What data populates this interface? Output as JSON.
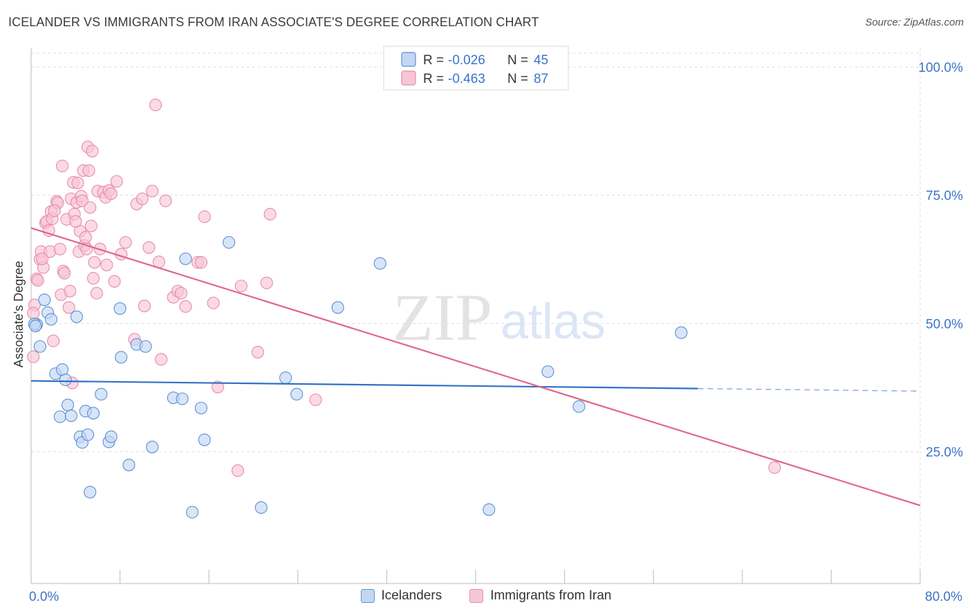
{
  "header": {
    "title": "ICELANDER VS IMMIGRANTS FROM IRAN ASSOCIATE'S DEGREE CORRELATION CHART",
    "source": "Source: ZipAtlas.com"
  },
  "watermark": {
    "zip": "ZIP",
    "atlas": "atlas"
  },
  "colors": {
    "blue_fill": "#c3d7f2",
    "blue_stroke": "#5b8fd6",
    "blue_line": "#2f6fc9",
    "pink_fill": "#f7c6d5",
    "pink_stroke": "#e98aa8",
    "pink_line": "#e0648f",
    "axis_label": "#3b73c8",
    "grid": "#dddddd"
  },
  "legend_top": {
    "rows": [
      {
        "r_label": "R =",
        "r_value": "-0.026",
        "n_label": "N =",
        "n_value": "45"
      },
      {
        "r_label": "R =",
        "r_value": "-0.463",
        "n_label": "N =",
        "n_value": "87"
      }
    ]
  },
  "chart_data": {
    "type": "scatter",
    "title": "ICELANDER VS IMMIGRANTS FROM IRAN ASSOCIATE'S DEGREE CORRELATION CHART",
    "xlabel": "",
    "ylabel": "Associate's Degree",
    "xlim": [
      0,
      80
    ],
    "ylim": [
      0,
      105
    ],
    "x_tick_labels": [
      "0.0%",
      "80.0%"
    ],
    "y_ticks": [
      25,
      50,
      75,
      100
    ],
    "y_tick_labels": [
      "25.0%",
      "50.0%",
      "75.0%",
      "100.0%"
    ],
    "grid": true,
    "legend_position": "top-center",
    "series": [
      {
        "name": "Icelanders",
        "r": -0.026,
        "n": 45,
        "trend": {
          "x0": 0,
          "y0": 38.8,
          "x1": 60,
          "y1": 37.3,
          "dashed_to": 80,
          "dashed_y": 36.8
        },
        "points": [
          [
            0.5,
            49.8
          ],
          [
            0.8,
            45.5
          ],
          [
            1.2,
            54.6
          ],
          [
            1.5,
            52.1
          ],
          [
            1.8,
            50.8
          ],
          [
            2.2,
            40.2
          ],
          [
            2.6,
            31.8
          ],
          [
            2.8,
            41.0
          ],
          [
            3.1,
            39.0
          ],
          [
            3.3,
            34.1
          ],
          [
            3.6,
            32.0
          ],
          [
            4.1,
            51.3
          ],
          [
            4.4,
            27.9
          ],
          [
            4.6,
            26.8
          ],
          [
            4.9,
            32.9
          ],
          [
            5.1,
            28.3
          ],
          [
            5.3,
            17.1
          ],
          [
            5.6,
            32.5
          ],
          [
            6.3,
            36.2
          ],
          [
            7.0,
            26.9
          ],
          [
            7.2,
            27.9
          ],
          [
            8.0,
            52.9
          ],
          [
            8.1,
            43.4
          ],
          [
            8.8,
            22.4
          ],
          [
            9.5,
            45.9
          ],
          [
            10.3,
            45.5
          ],
          [
            10.9,
            25.9
          ],
          [
            12.8,
            35.5
          ],
          [
            13.6,
            35.3
          ],
          [
            13.9,
            62.6
          ],
          [
            14.5,
            13.2
          ],
          [
            15.3,
            33.5
          ],
          [
            15.6,
            27.3
          ],
          [
            17.8,
            65.8
          ],
          [
            20.7,
            14.1
          ],
          [
            22.9,
            39.4
          ],
          [
            23.9,
            36.2
          ],
          [
            27.6,
            53.1
          ],
          [
            31.4,
            61.7
          ],
          [
            41.2,
            13.7
          ],
          [
            46.5,
            40.6
          ],
          [
            49.3,
            33.8
          ],
          [
            58.5,
            48.2
          ],
          [
            0.3,
            49.9
          ],
          [
            0.4,
            49.5
          ]
        ]
      },
      {
        "name": "Immigrants from Iran",
        "r": -0.463,
        "n": 87,
        "trend": {
          "x0": 0,
          "y0": 68.6,
          "x1": 80,
          "y1": 14.5
        },
        "points": [
          [
            0.3,
            53.6
          ],
          [
            0.5,
            58.7
          ],
          [
            0.6,
            58.4
          ],
          [
            0.8,
            62.5
          ],
          [
            0.9,
            64.0
          ],
          [
            1.1,
            60.9
          ],
          [
            1.3,
            69.6
          ],
          [
            1.4,
            69.9
          ],
          [
            1.6,
            68.1
          ],
          [
            1.7,
            64.0
          ],
          [
            1.8,
            71.8
          ],
          [
            1.9,
            70.4
          ],
          [
            2.0,
            46.6
          ],
          [
            2.3,
            73.8
          ],
          [
            2.4,
            73.5
          ],
          [
            2.6,
            64.5
          ],
          [
            2.7,
            55.6
          ],
          [
            2.8,
            80.7
          ],
          [
            2.9,
            60.2
          ],
          [
            3.0,
            59.8
          ],
          [
            3.2,
            70.3
          ],
          [
            3.4,
            53.1
          ],
          [
            3.5,
            56.3
          ],
          [
            3.6,
            74.3
          ],
          [
            3.7,
            38.4
          ],
          [
            3.8,
            77.5
          ],
          [
            3.9,
            71.3
          ],
          [
            4.1,
            73.6
          ],
          [
            4.2,
            77.4
          ],
          [
            4.3,
            64.0
          ],
          [
            4.4,
            68.0
          ],
          [
            4.5,
            74.8
          ],
          [
            4.6,
            73.9
          ],
          [
            4.7,
            79.8
          ],
          [
            4.8,
            65.2
          ],
          [
            4.9,
            66.8
          ],
          [
            5.0,
            64.5
          ],
          [
            5.1,
            84.4
          ],
          [
            5.2,
            79.8
          ],
          [
            5.3,
            72.6
          ],
          [
            5.4,
            69.0
          ],
          [
            5.5,
            83.6
          ],
          [
            5.6,
            58.8
          ],
          [
            5.7,
            61.9
          ],
          [
            5.9,
            55.9
          ],
          [
            6.0,
            75.8
          ],
          [
            6.2,
            64.5
          ],
          [
            6.5,
            75.6
          ],
          [
            6.7,
            74.6
          ],
          [
            6.8,
            61.4
          ],
          [
            7.0,
            75.9
          ],
          [
            7.2,
            75.3
          ],
          [
            7.5,
            58.2
          ],
          [
            7.7,
            77.7
          ],
          [
            8.1,
            63.5
          ],
          [
            8.5,
            65.8
          ],
          [
            9.3,
            46.9
          ],
          [
            9.5,
            73.3
          ],
          [
            10.0,
            74.3
          ],
          [
            10.2,
            53.4
          ],
          [
            10.6,
            64.8
          ],
          [
            10.9,
            75.8
          ],
          [
            11.5,
            62.0
          ],
          [
            11.7,
            43.0
          ],
          [
            12.1,
            73.9
          ],
          [
            12.8,
            55.1
          ],
          [
            13.2,
            56.3
          ],
          [
            13.5,
            55.9
          ],
          [
            13.9,
            53.3
          ],
          [
            15.0,
            61.9
          ],
          [
            15.3,
            61.9
          ],
          [
            15.6,
            70.8
          ],
          [
            16.4,
            54.0
          ],
          [
            16.8,
            37.6
          ],
          [
            18.6,
            21.3
          ],
          [
            18.9,
            57.3
          ],
          [
            20.4,
            44.4
          ],
          [
            21.2,
            57.9
          ],
          [
            21.5,
            71.3
          ],
          [
            25.6,
            35.1
          ],
          [
            66.9,
            21.9
          ],
          [
            11.2,
            92.6
          ],
          [
            0.2,
            43.5
          ],
          [
            0.2,
            52.0
          ],
          [
            2.1,
            72.0
          ],
          [
            1.0,
            62.6
          ],
          [
            4.0,
            69.9
          ]
        ]
      }
    ]
  }
}
